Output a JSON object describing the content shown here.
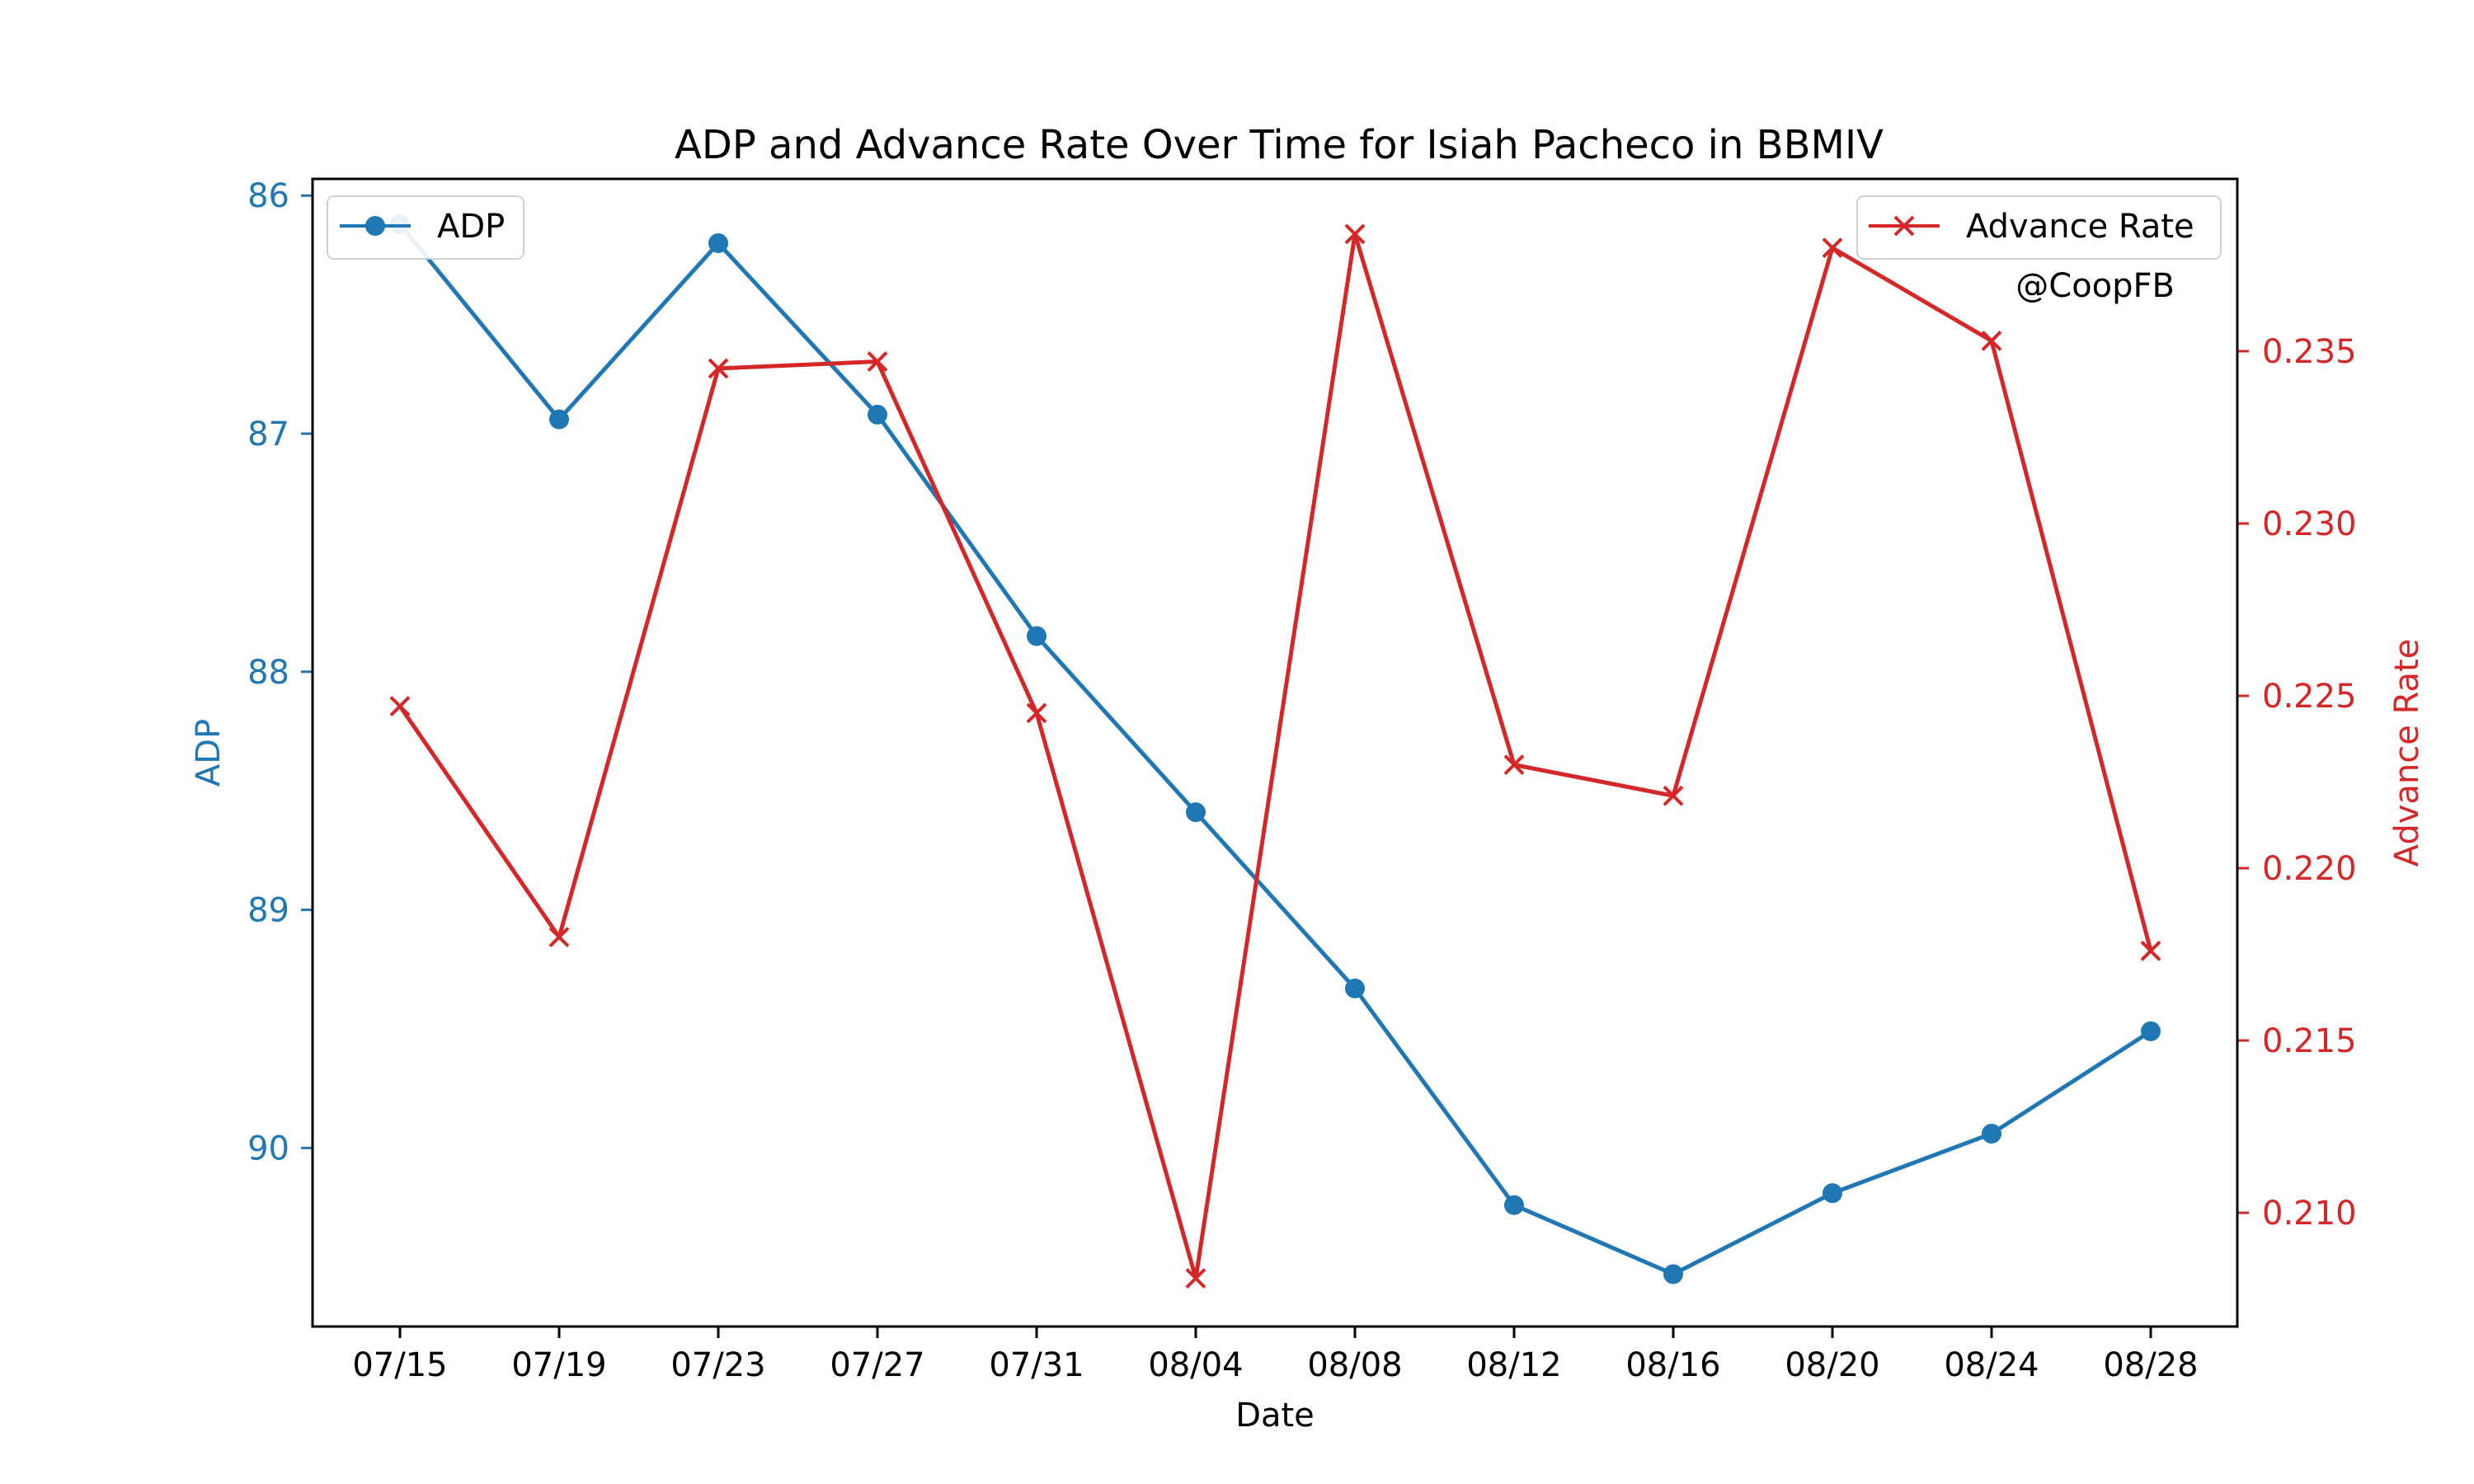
{
  "chart_data": {
    "type": "line",
    "title": "ADP and Advance Rate Over Time for Isiah Pacheco in BBMIV",
    "xlabel": "Date",
    "x_tick_labels": [
      "07/15",
      "07/19",
      "07/23",
      "07/27",
      "07/31",
      "08/04",
      "08/08",
      "08/12",
      "08/16",
      "08/20",
      "08/24",
      "08/28"
    ],
    "left_axis": {
      "label": "ADP",
      "color": "#1f77b4",
      "inverted": true,
      "ylim": [
        85.93,
        90.75
      ],
      "ticks": [
        86,
        87,
        88,
        89,
        90
      ]
    },
    "right_axis": {
      "label": "Advance Rate",
      "color": "#d62728",
      "ylim": [
        0.2067,
        0.24
      ],
      "ticks": [
        0.21,
        0.215,
        0.22,
        0.225,
        0.23,
        0.235
      ]
    },
    "series": [
      {
        "name": "ADP",
        "axis": "left",
        "marker": "circle",
        "color": "#1f77b4",
        "values": [
          86.12,
          86.94,
          86.2,
          86.92,
          87.85,
          88.59,
          89.33,
          90.24,
          90.53,
          90.19,
          89.94,
          89.51
        ]
      },
      {
        "name": "Advance Rate",
        "axis": "right",
        "marker": "x",
        "color": "#d62728",
        "values": [
          0.2247,
          0.218,
          0.2345,
          0.2347,
          0.2245,
          0.2081,
          0.2384,
          0.223,
          0.2221,
          0.238,
          0.2353,
          0.2176
        ]
      }
    ],
    "legends": [
      {
        "entries": [
          "ADP"
        ],
        "placement": "upper-left"
      },
      {
        "entries": [
          "Advance Rate"
        ],
        "placement": "upper-right"
      }
    ],
    "annotation": "@CoopFB",
    "grid": false
  }
}
